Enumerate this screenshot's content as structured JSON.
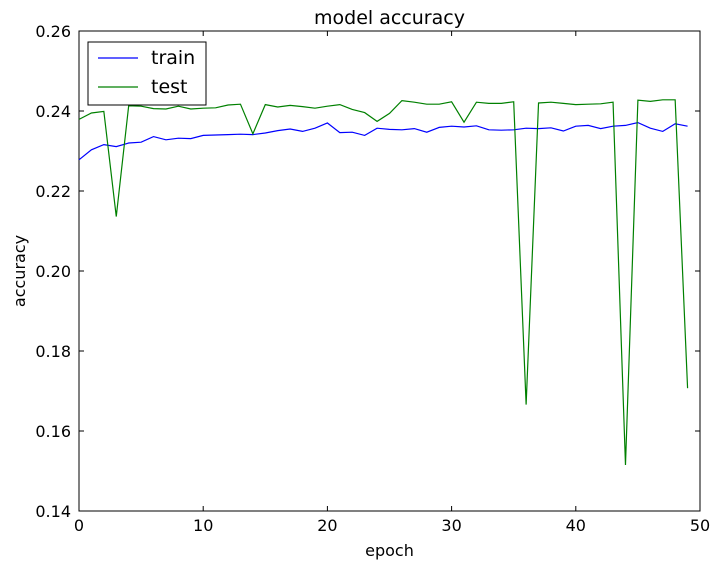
{
  "chart_data": {
    "type": "line",
    "title": "model accuracy",
    "xlabel": "epoch",
    "ylabel": "accuracy",
    "xlim": [
      0,
      50
    ],
    "ylim": [
      0.14,
      0.26
    ],
    "xticks": [
      0,
      10,
      20,
      30,
      40,
      50
    ],
    "yticks": [
      0.14,
      0.16,
      0.18,
      0.2,
      0.22,
      0.24,
      0.26
    ],
    "xtick_labels": [
      "0",
      "10",
      "20",
      "30",
      "40",
      "50"
    ],
    "ytick_labels": [
      "0.14",
      "0.16",
      "0.18",
      "0.20",
      "0.22",
      "0.24",
      "0.26"
    ],
    "grid": false,
    "legend_position": "upper-left",
    "x": [
      0,
      1,
      2,
      3,
      4,
      5,
      6,
      7,
      8,
      9,
      10,
      11,
      12,
      13,
      14,
      15,
      16,
      17,
      18,
      19,
      20,
      21,
      22,
      23,
      24,
      25,
      26,
      27,
      28,
      29,
      30,
      31,
      32,
      33,
      34,
      35,
      36,
      37,
      38,
      39,
      40,
      41,
      42,
      43,
      44,
      45,
      46,
      47,
      48,
      49
    ],
    "series": [
      {
        "name": "train",
        "color": "#0000ff",
        "values": [
          0.2278,
          0.2303,
          0.2316,
          0.2311,
          0.232,
          0.2322,
          0.2336,
          0.2328,
          0.2332,
          0.2331,
          0.2339,
          0.234,
          0.2341,
          0.2342,
          0.2341,
          0.2345,
          0.2351,
          0.2355,
          0.2349,
          0.2357,
          0.237,
          0.2346,
          0.2347,
          0.2339,
          0.2357,
          0.2354,
          0.2353,
          0.2356,
          0.2347,
          0.2359,
          0.2362,
          0.236,
          0.2363,
          0.2353,
          0.2352,
          0.2353,
          0.2357,
          0.2356,
          0.2358,
          0.235,
          0.2362,
          0.2364,
          0.2356,
          0.2362,
          0.2364,
          0.2371,
          0.2357,
          0.2349,
          0.2368,
          0.2362
        ]
      },
      {
        "name": "test",
        "color": "#008000",
        "values": [
          0.2379,
          0.2395,
          0.2399,
          0.2136,
          0.2413,
          0.2412,
          0.2406,
          0.2405,
          0.2412,
          0.2405,
          0.2407,
          0.2408,
          0.2415,
          0.2417,
          0.2343,
          0.2416,
          0.241,
          0.2414,
          0.2411,
          0.2407,
          0.2412,
          0.2416,
          0.2404,
          0.2396,
          0.2374,
          0.2394,
          0.2426,
          0.2422,
          0.2417,
          0.2417,
          0.2423,
          0.2372,
          0.2422,
          0.2419,
          0.2419,
          0.2423,
          0.1666,
          0.242,
          0.2422,
          0.2419,
          0.2416,
          0.2417,
          0.2418,
          0.2422,
          0.1515,
          0.2427,
          0.2424,
          0.2428,
          0.2428,
          0.1707
        ]
      }
    ]
  }
}
